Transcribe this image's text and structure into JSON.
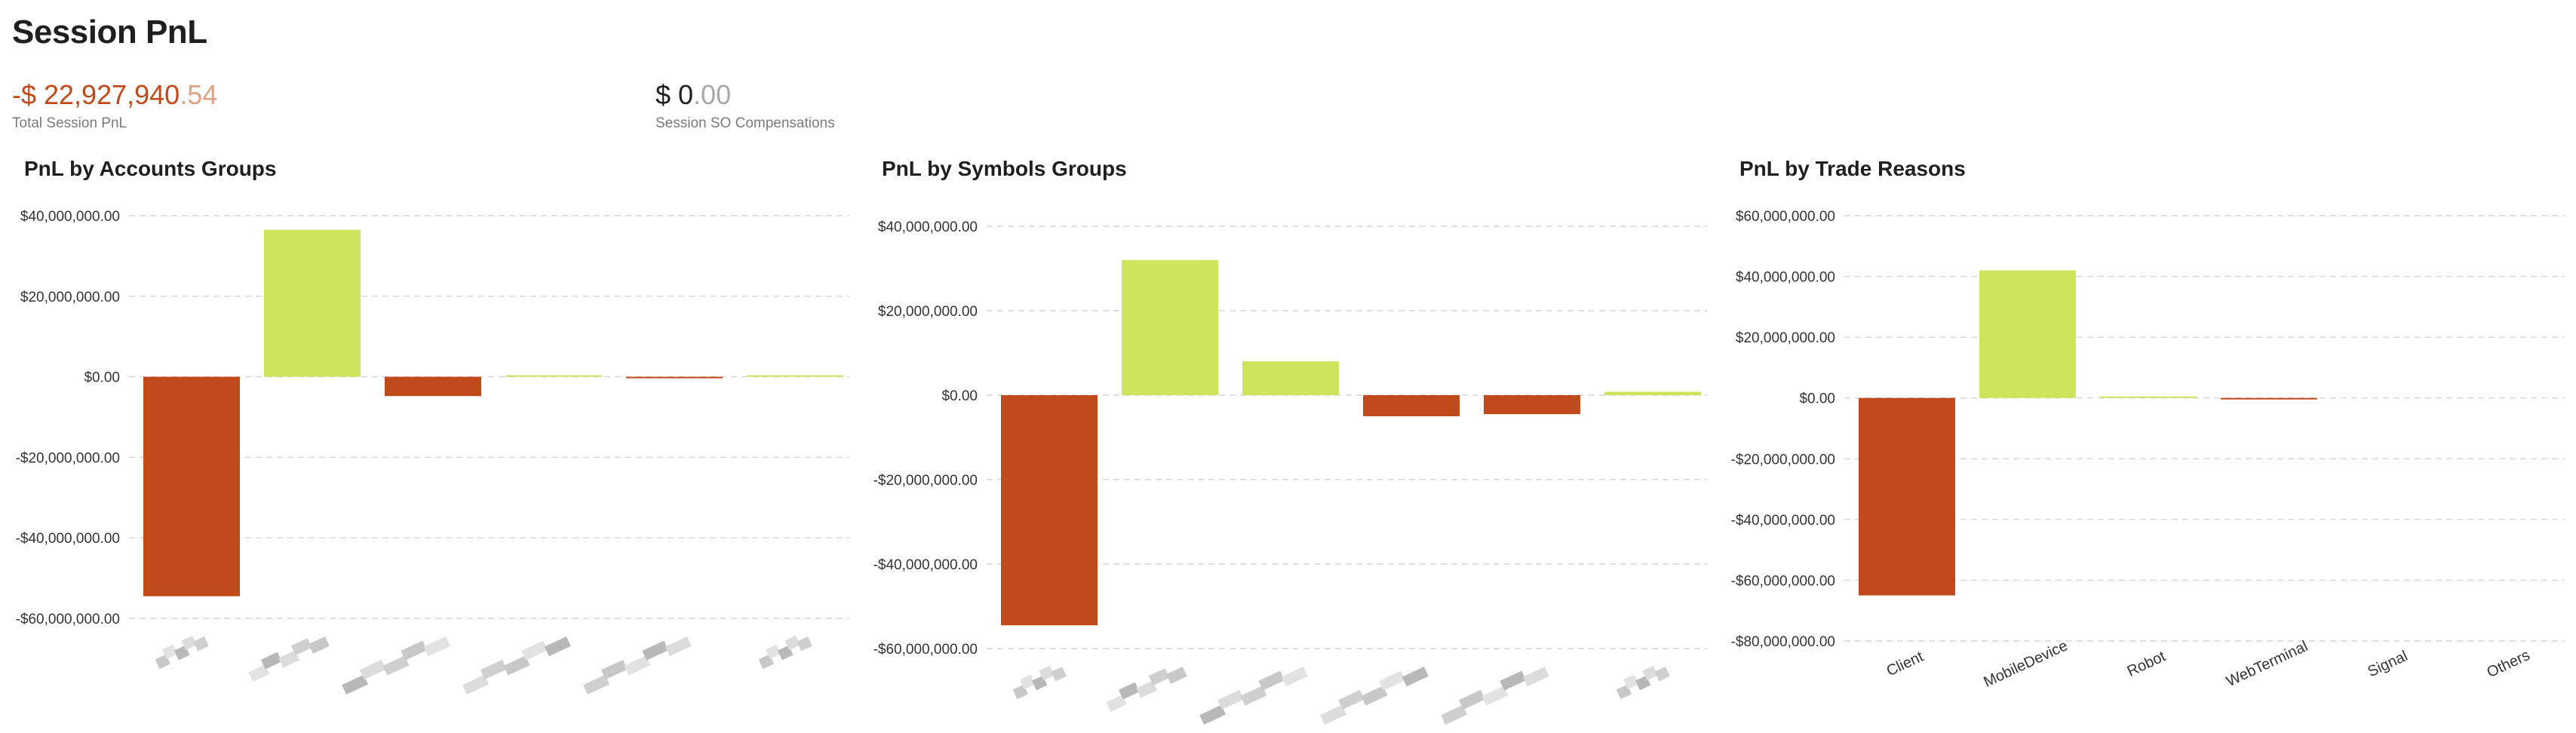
{
  "page": {
    "title": "Session PnL"
  },
  "kpis": {
    "total_pnl": {
      "int": "-$ 22,927,940",
      "dec": ".54",
      "label": "Total Session PnL"
    },
    "so_comp": {
      "int": "$ 0",
      "dec": ".00",
      "label": "Session SO Compensations"
    }
  },
  "colors": {
    "positive": "#cce55c",
    "negative": "#c04a1b",
    "grid": "#d6d6d6"
  },
  "chart_data": [
    {
      "type": "bar",
      "title": "PnL by Accounts Groups",
      "ylim": [
        -60000000,
        40000000
      ],
      "yticks": [
        40000000,
        20000000,
        0,
        -20000000,
        -40000000,
        -60000000
      ],
      "ytick_labels": [
        "$40,000,000.00",
        "$20,000,000.00",
        "$0.00",
        "-$20,000,000.00",
        "-$40,000,000.00",
        "-$60,000,000.00"
      ],
      "categories": [
        "",
        "",
        "",
        "",
        "",
        ""
      ],
      "values": [
        -54500000,
        36500000,
        -4800000,
        200000,
        -300000,
        100000
      ],
      "grid": true,
      "category_labels_obscured": true
    },
    {
      "type": "bar",
      "title": "PnL by Symbols Groups",
      "ylim": [
        -60000000,
        40000000
      ],
      "yticks": [
        40000000,
        20000000,
        0,
        -20000000,
        -40000000,
        -60000000
      ],
      "ytick_labels": [
        "$40,000,000.00",
        "$20,000,000.00",
        "$0.00",
        "-$20,000,000.00",
        "-$40,000,000.00",
        "-$60,000,000.00"
      ],
      "categories": [
        "",
        "",
        "",
        "",
        "",
        ""
      ],
      "values": [
        -54500000,
        32000000,
        8000000,
        -5000000,
        -4500000,
        800000
      ],
      "grid": true,
      "category_labels_obscured": true
    },
    {
      "type": "bar",
      "title": "PnL by Trade Reasons",
      "ylim": [
        -80000000,
        60000000
      ],
      "yticks": [
        60000000,
        40000000,
        20000000,
        0,
        -20000000,
        -40000000,
        -60000000,
        -80000000
      ],
      "ytick_labels": [
        "$60,000,000.00",
        "$40,000,000.00",
        "$20,000,000.00",
        "$0.00",
        "-$20,000,000.00",
        "-$40,000,000.00",
        "-$60,000,000.00",
        "-$80,000,000.00"
      ],
      "categories": [
        "Client",
        "MobileDevice",
        "Robot",
        "WebTerminal",
        "Signal",
        "Others"
      ],
      "values": [
        -65000000,
        42000000,
        400000,
        -300000,
        0,
        0
      ],
      "grid": true,
      "category_labels_obscured": false
    }
  ]
}
